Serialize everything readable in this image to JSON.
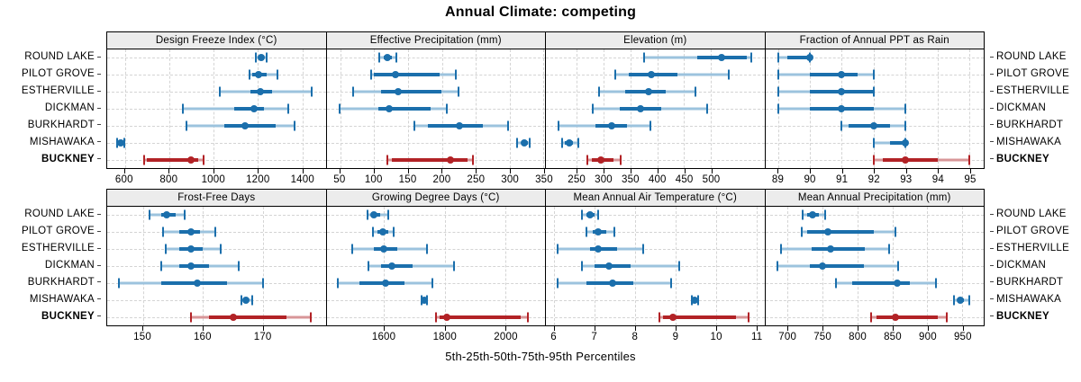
{
  "title": "Annual Climate: competing",
  "footer": "5th-25th-50th-75th-95th Percentiles",
  "colors": {
    "blue": "#1b6fac",
    "blue_light": "#9cc3de",
    "red": "#b22226",
    "red_light": "#d89698",
    "strip_bg": "#ececec",
    "grid": "#d4d4d4",
    "border": "#000000"
  },
  "chart_data": {
    "type": "dot-interval-trellis",
    "subtitle_caption": "5th-25th-50th-75th-95th Percentiles",
    "percentile_labels": [
      "5th",
      "25th",
      "50th",
      "75th",
      "95th"
    ],
    "legend_position": "none",
    "grid": "dashed",
    "layout": {
      "grid_rows": 2,
      "grid_cols": 4,
      "row_labels_both_sides": true
    },
    "rows": [
      {
        "label": "ROUND LAKE",
        "bold": false,
        "series_color": "blue"
      },
      {
        "label": "PILOT GROVE",
        "bold": false,
        "series_color": "blue"
      },
      {
        "label": "ESTHERVILLE",
        "bold": false,
        "series_color": "blue"
      },
      {
        "label": "DICKMAN",
        "bold": false,
        "series_color": "blue"
      },
      {
        "label": "BURKHARDT",
        "bold": false,
        "series_color": "blue"
      },
      {
        "label": "MISHAWAKA",
        "bold": false,
        "series_color": "blue"
      },
      {
        "label": "BUCKNEY",
        "bold": true,
        "series_color": "red"
      }
    ],
    "panels": [
      {
        "title": "Design Freeze Index (°C)",
        "xlim": [
          520,
          1505
        ],
        "ticks": [
          600,
          800,
          1000,
          1200,
          1400
        ],
        "values": [
          [
            1192,
            1202,
            1215,
            1228,
            1237
          ],
          [
            1161,
            1173,
            1202,
            1240,
            1287
          ],
          [
            1027,
            1165,
            1210,
            1264,
            1443
          ],
          [
            861,
            1091,
            1181,
            1226,
            1337
          ],
          [
            877,
            1050,
            1141,
            1280,
            1364
          ],
          [
            565,
            574,
            581,
            589,
            597
          ],
          [
            685,
            700,
            897,
            930,
            953
          ]
        ]
      },
      {
        "title": "Effective Precipitation (mm)",
        "xlim": [
          30,
          352
        ],
        "ticks": [
          50,
          100,
          150,
          200,
          250,
          300,
          350
        ],
        "values": [
          [
            108,
            114,
            119,
            126,
            133
          ],
          [
            96,
            100,
            132,
            196,
            221
          ],
          [
            69,
            110,
            136,
            199,
            224
          ],
          [
            49,
            106,
            122,
            184,
            207
          ],
          [
            160,
            179,
            226,
            260,
            297
          ],
          [
            311,
            317,
            322,
            327,
            330
          ],
          [
            120,
            126,
            212,
            238,
            246
          ]
        ]
      },
      {
        "title": "Elevation (m)",
        "xlim": [
          192,
          600
        ],
        "ticks": [
          250,
          300,
          350,
          400,
          450,
          500
        ],
        "values": [
          [
            375,
            475,
            520,
            568,
            575
          ],
          [
            321,
            347,
            389,
            437,
            534
          ],
          [
            292,
            340,
            384,
            415,
            472
          ],
          [
            280,
            330,
            368,
            408,
            493
          ],
          [
            215,
            285,
            315,
            343,
            387
          ],
          [
            223,
            228,
            235,
            243,
            252
          ],
          [
            270,
            277,
            295,
            318,
            331
          ]
        ]
      },
      {
        "title": "Fraction of Annual PPT as Rain",
        "xlim": [
          88.6,
          95.45
        ],
        "ticks": [
          89,
          90,
          91,
          92,
          93,
          94,
          95
        ],
        "values": [
          [
            89,
            89.3,
            90,
            90,
            90
          ],
          [
            89,
            90,
            91,
            91.5,
            92
          ],
          [
            89,
            90,
            91,
            92,
            92
          ],
          [
            89,
            90,
            91,
            92,
            93
          ],
          [
            91,
            91.2,
            92,
            92.5,
            93
          ],
          [
            92,
            92.5,
            93,
            93,
            93
          ],
          [
            92,
            92.3,
            93,
            94,
            95
          ]
        ]
      },
      {
        "title": "Frost-Free Days",
        "xlim": [
          144,
          180.5
        ],
        "ticks": [
          150,
          160,
          170
        ],
        "values": [
          [
            151,
            153,
            154,
            155.5,
            157
          ],
          [
            153.3,
            156,
            158,
            159.5,
            162
          ],
          [
            153.8,
            156,
            158,
            160,
            163
          ],
          [
            153,
            156,
            158,
            161,
            166
          ],
          [
            146,
            153,
            159,
            164,
            170
          ],
          [
            166.5,
            166.9,
            167.2,
            167.7,
            168.3
          ],
          [
            158,
            161,
            165,
            174,
            178
          ]
        ]
      },
      {
        "title": "Growing Degree Days (°C)",
        "xlim": [
          1410,
          2130
        ],
        "ticks": [
          1600,
          1800,
          2000
        ],
        "values": [
          [
            1545,
            1556,
            1566,
            1588,
            1614
          ],
          [
            1563,
            1578,
            1596,
            1614,
            1631
          ],
          [
            1494,
            1565,
            1600,
            1643,
            1740
          ],
          [
            1548,
            1590,
            1625,
            1693,
            1829
          ],
          [
            1447,
            1519,
            1604,
            1668,
            1759
          ],
          [
            1724,
            1728,
            1732,
            1736,
            1740
          ],
          [
            1772,
            1784,
            1807,
            2050,
            2074
          ]
        ]
      },
      {
        "title": "Mean Annual Air Temperature (°C)",
        "xlim": [
          5.8,
          11.2
        ],
        "ticks": [
          6,
          7,
          8,
          9,
          10,
          11
        ],
        "values": [
          [
            6.7,
            6.8,
            6.9,
            7.0,
            7.1
          ],
          [
            6.8,
            6.95,
            7.1,
            7.3,
            7.5
          ],
          [
            6.1,
            6.9,
            7.1,
            7.55,
            8.2
          ],
          [
            6.7,
            7.0,
            7.35,
            7.9,
            9.1
          ],
          [
            6.1,
            6.8,
            7.45,
            7.95,
            8.9
          ],
          [
            9.4,
            9.44,
            9.48,
            9.52,
            9.56
          ],
          [
            8.6,
            8.7,
            8.95,
            10.5,
            10.8
          ]
        ]
      },
      {
        "title": "Mean Annual Precipitation (mm)",
        "xlim": [
          668,
          981
        ],
        "ticks": [
          700,
          750,
          800,
          850,
          900,
          950
        ],
        "values": [
          [
            722,
            728,
            736,
            745,
            754
          ],
          [
            720,
            728,
            758,
            824,
            854
          ],
          [
            691,
            734,
            762,
            811,
            845
          ],
          [
            685,
            732,
            750,
            809,
            858
          ],
          [
            769,
            792,
            857,
            875,
            912
          ],
          [
            939,
            944,
            948,
            953,
            960
          ],
          [
            820,
            828,
            855,
            915,
            928
          ]
        ]
      }
    ]
  }
}
